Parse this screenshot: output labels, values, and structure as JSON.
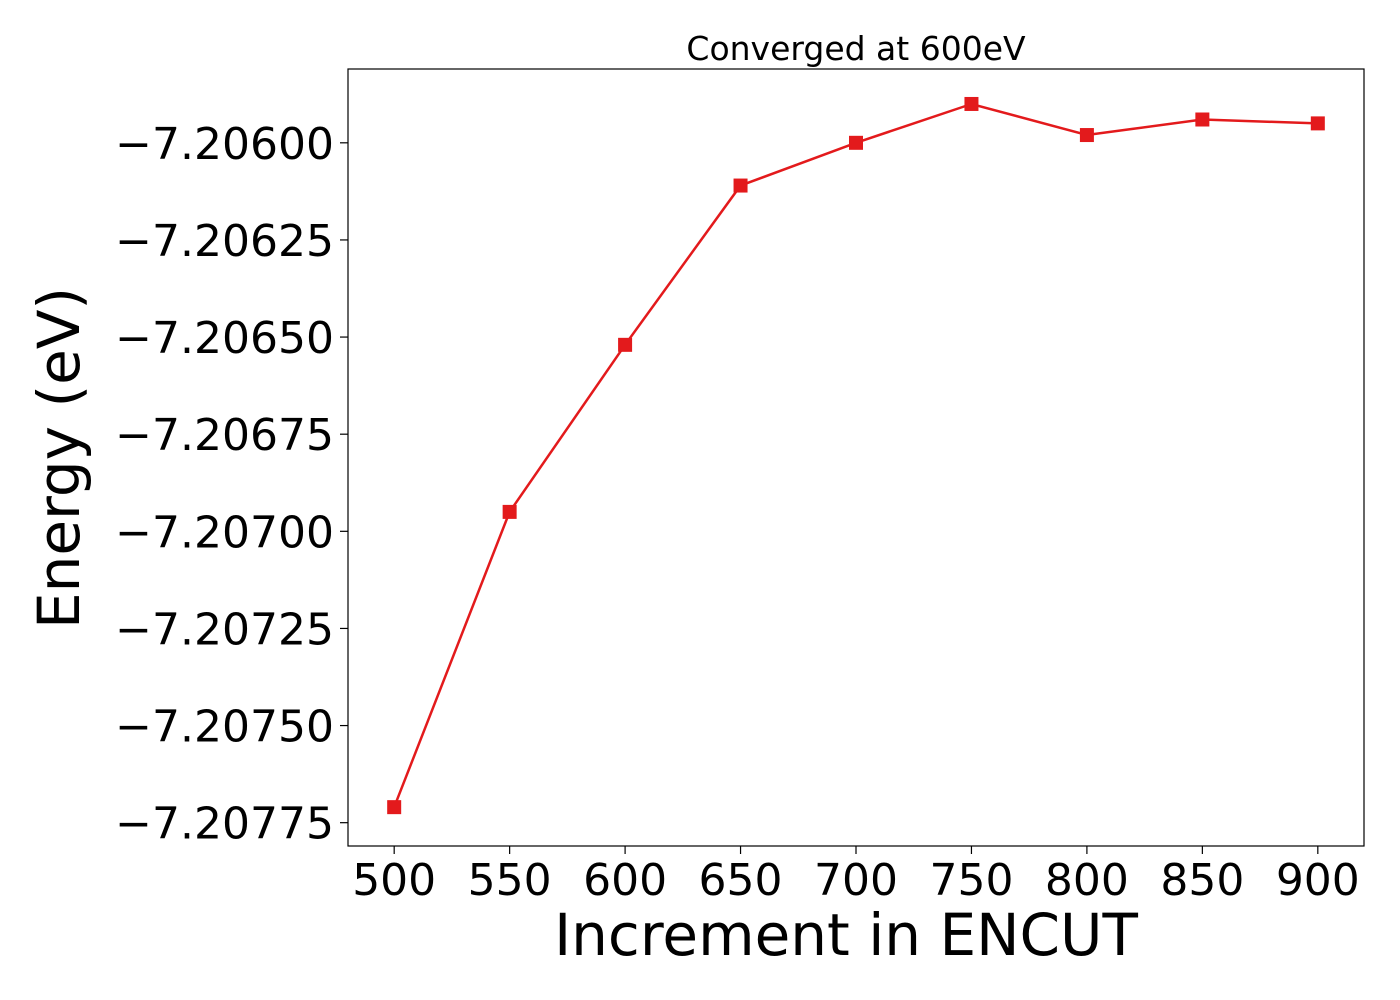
{
  "chart_data": {
    "type": "line",
    "title": "Converged at 600eV",
    "xlabel": "Increment in ENCUT",
    "ylabel": "Energy (eV)",
    "x": [
      500,
      550,
      600,
      650,
      700,
      750,
      800,
      850,
      900
    ],
    "series": [
      {
        "values": [
          -7.20771,
          -7.20695,
          -7.20652,
          -7.20611,
          -7.206,
          -7.2059,
          -7.20598,
          -7.20594,
          -7.20595
        ],
        "color": "#e31a1c",
        "marker": "square"
      }
    ],
    "xlim": [
      480,
      920
    ],
    "ylim": [
      -7.20781,
      -7.20581
    ],
    "xticks": [
      500,
      550,
      600,
      650,
      700,
      750,
      800,
      850,
      900
    ],
    "xtick_labels": [
      "500",
      "550",
      "600",
      "650",
      "700",
      "750",
      "800",
      "850",
      "900"
    ],
    "yticks": [
      -7.206,
      -7.20625,
      -7.2065,
      -7.20675,
      -7.207,
      -7.20725,
      -7.2075,
      -7.20775
    ],
    "ytick_labels": [
      "−7.20600",
      "−7.20625",
      "−7.20650",
      "−7.20675",
      "−7.20700",
      "−7.20725",
      "−7.20750",
      "−7.20775"
    ],
    "grid": false,
    "legend": "none"
  }
}
